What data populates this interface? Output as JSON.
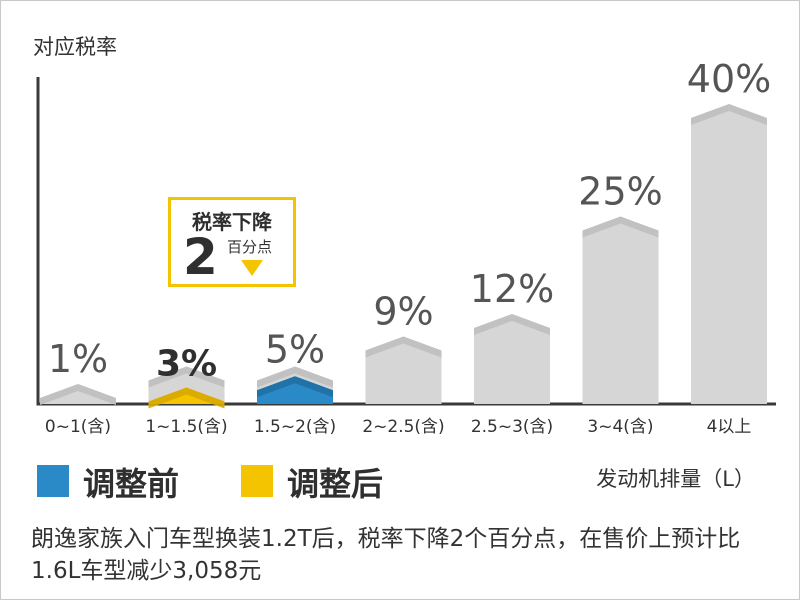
{
  "chart_data": {
    "type": "bar",
    "ylabel": "对应税率",
    "xlabel": "发动机排量（L）",
    "categories": [
      "0~1(含)",
      "1~1.5(含)",
      "1.5~2(含)",
      "2~2.5(含)",
      "2.5~3(含)",
      "3~4(含)",
      "4以上"
    ],
    "series": [
      {
        "name": "调整前",
        "values": [
          1,
          5,
          5,
          9,
          12,
          25,
          40
        ],
        "labels": [
          "1%",
          "",
          "5%",
          "9%",
          "12%",
          "25%",
          "40%"
        ]
      },
      {
        "name": "调整后",
        "values": [
          null,
          3,
          null,
          null,
          null,
          null,
          null
        ],
        "labels": [
          "",
          "3%",
          "",
          "",
          "",
          "",
          ""
        ]
      }
    ],
    "ylim": [
      0,
      42
    ],
    "grid": false,
    "legend_position": "bottom-left"
  },
  "colors": {
    "before": "#2a8ac8",
    "after": "#f5c400",
    "bar": "#d6d6d6",
    "bar_cap": "#bfbfbf",
    "axis": "#3a3a3a"
  },
  "callout": {
    "title": "税率下降",
    "number": "2",
    "unit": "百分点",
    "icon": "down-triangle-icon"
  },
  "legend": {
    "before_label": "调整前",
    "after_label": "调整后"
  },
  "caption": "朗逸家族入门车型换装1.2T后，税率下降2个百分点，在售价上预计比1.6L车型减少3,058元"
}
